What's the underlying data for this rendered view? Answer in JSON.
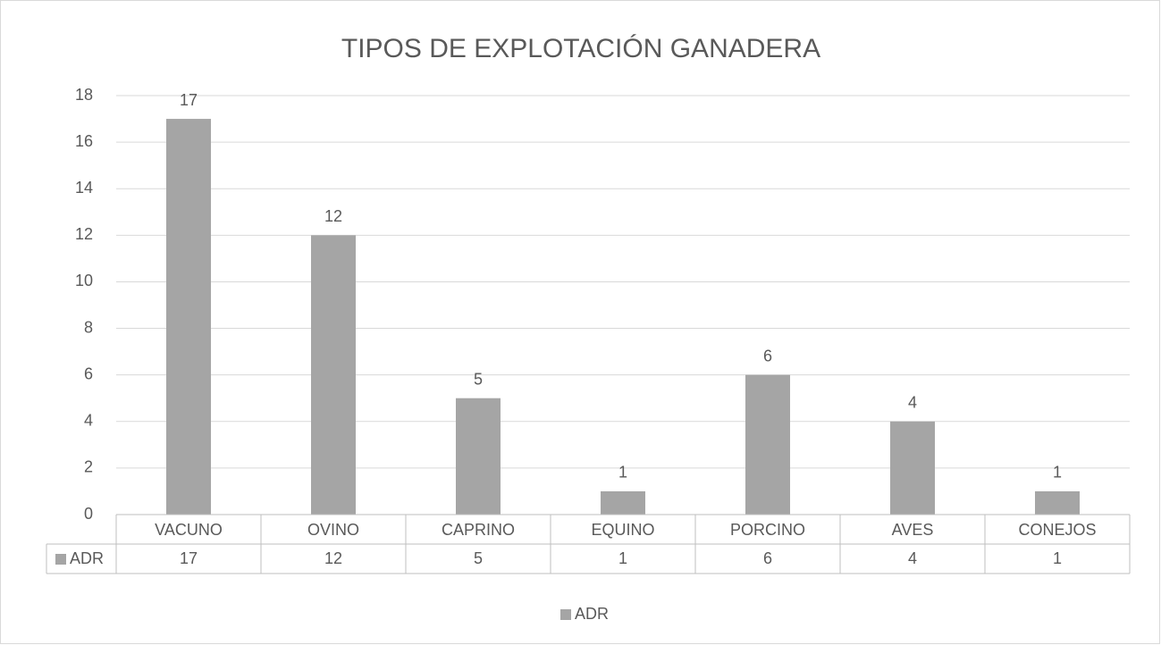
{
  "chart_data": {
    "type": "bar",
    "title": "TIPOS DE EXPLOTACIÓN GANADERA",
    "categories": [
      "VACUNO",
      "OVINO",
      "CAPRINO",
      "EQUINO",
      "PORCINO",
      "AVES",
      "CONEJOS"
    ],
    "series": [
      {
        "name": "ADR",
        "color": "#a5a5a5",
        "values": [
          17,
          12,
          5,
          1,
          6,
          4,
          1
        ]
      }
    ],
    "ylim": [
      0,
      18
    ],
    "yticks": [
      0,
      2,
      4,
      6,
      8,
      10,
      12,
      14,
      16,
      18
    ],
    "grid": true,
    "legend": "bottom",
    "data_table": true
  }
}
